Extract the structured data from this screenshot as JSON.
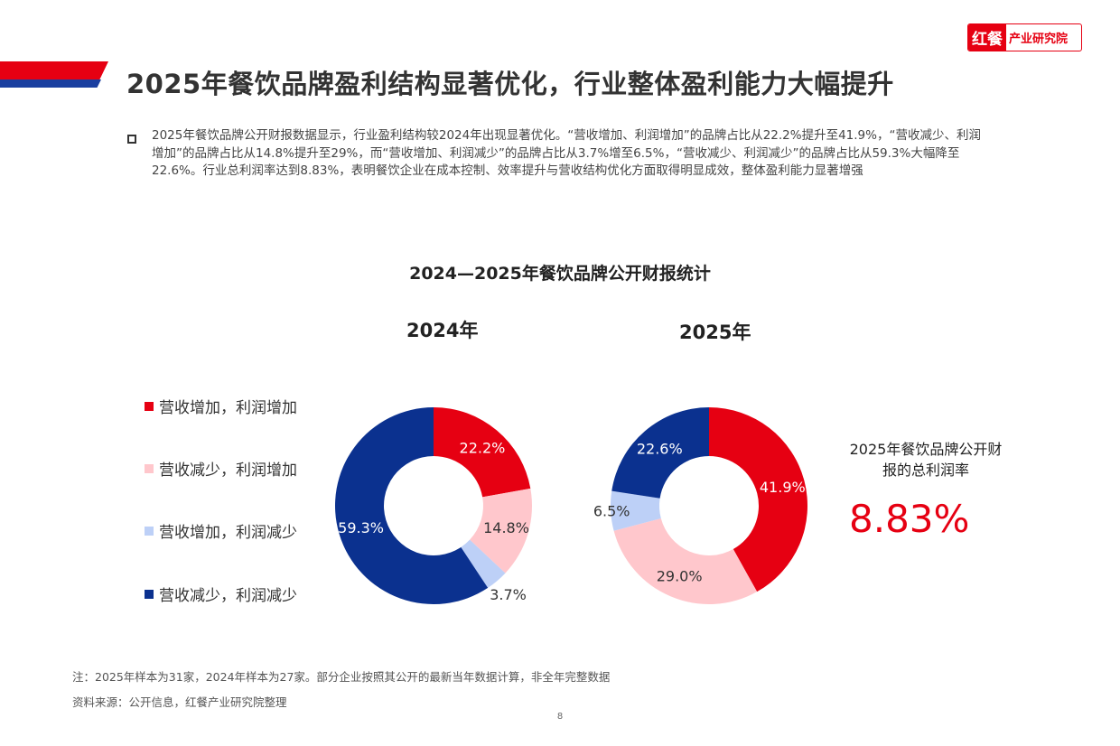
{
  "logo": {
    "part1": "红餐",
    "part2": "产业研究院"
  },
  "title": "2025年餐饮品牌盈利结构显著优化，行业整体盈利能力大幅提升",
  "paragraph": "2025年餐饮品牌公开财报数据显示，行业盈利结构较2024年出现显著优化。“营收增加、利润增加”的品牌占比从22.2%提升至41.9%，“营收减少、利润增加”的品牌占比从14.8%提升至29%，而“营收增加、利润减少”的品牌占比从3.7%增至6.5%，“营收减少、利润减少”的品牌占比从59.3%大幅降至22.6%。行业总利润率达到8.83%，表明餐饮企业在成本控制、效率提升与营收结构优化方面取得明显成效，整体盈利能力显著增强",
  "colors": {
    "red": "#E60012",
    "pink": "#FFC7CC",
    "lightblue": "#BDD0F7",
    "navy": "#0B318F"
  },
  "chart_data": {
    "type": "pie",
    "title": "2024—2025年餐饮品牌公开财报统计",
    "categories": [
      "营收增加，利润增加",
      "营收减少，利润增加",
      "营收增加，利润减少",
      "营收减少，利润减少"
    ],
    "series": [
      {
        "name": "2024年",
        "values": [
          22.2,
          14.8,
          3.7,
          59.3
        ],
        "labels": [
          "22.2%",
          "14.8%",
          "3.7%",
          "59.3%"
        ]
      },
      {
        "name": "2025年",
        "values": [
          41.9,
          29.0,
          6.5,
          22.6
        ],
        "labels": [
          "41.9%",
          "29.0%",
          "6.5%",
          "22.6%"
        ]
      }
    ],
    "legend": "left"
  },
  "side": {
    "label": "2025年餐饮品牌公开财报的总利润率",
    "value": "8.83%"
  },
  "notes": [
    "注：2025年样本为31家，2024年样本为27家。部分企业按照其公开的最新当年数据计算，非全年完整数据",
    "资料来源：公开信息，红餐产业研究院整理"
  ],
  "page": "8"
}
